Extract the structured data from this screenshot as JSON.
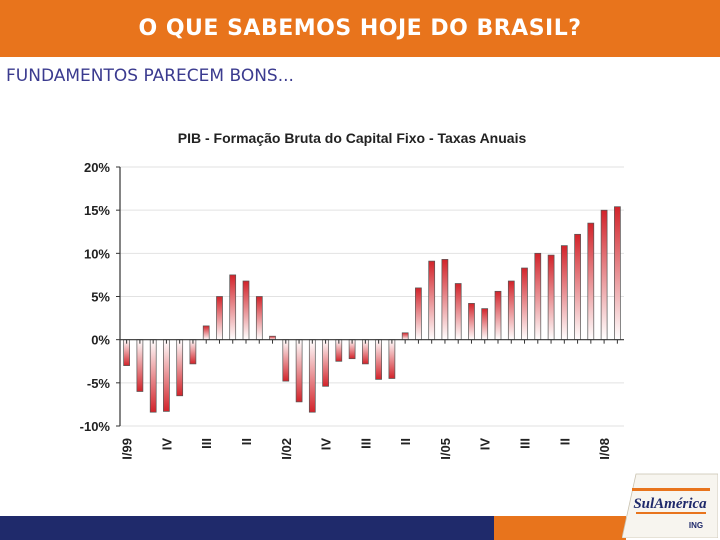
{
  "header": {
    "title": "O QUE SABEMOS HOJE DO BRASIL?"
  },
  "subtitle": "FUNDAMENTOS PARECEM BONS...",
  "colors": {
    "orange": "#e8741c",
    "navy": "#1f2a6b",
    "bar_top": "#d2232a"
  },
  "logo": {
    "brand": "SulAmérica",
    "partner": "ING"
  },
  "chart_data": {
    "type": "bar",
    "title": "PIB - Formação Bruta do Capital Fixo - Taxas Anuais",
    "ylim": [
      -10,
      20
    ],
    "yticks": [
      -10,
      -5,
      0,
      5,
      10,
      15,
      20
    ],
    "ytick_labels": [
      "-10%",
      "-5%",
      "0%",
      "5%",
      "10%",
      "15%",
      "20%"
    ],
    "xlabels": [
      "I/99",
      "IV",
      "III",
      "II",
      "I/02",
      "IV",
      "III",
      "II",
      "I/05",
      "IV",
      "III",
      "II",
      "I/08"
    ],
    "values": [
      -3.0,
      -6.0,
      -8.4,
      -8.3,
      -6.5,
      -2.8,
      1.6,
      5.0,
      7.5,
      6.8,
      5.0,
      0.4,
      -4.8,
      -7.2,
      -8.4,
      -5.4,
      -2.5,
      -2.2,
      -2.8,
      -4.6,
      -4.5,
      0.8,
      6.0,
      9.1,
      9.3,
      6.5,
      4.2,
      3.6,
      5.6,
      6.8,
      8.3,
      10.0,
      9.8,
      10.9,
      12.2,
      13.5,
      15.0,
      15.4
    ]
  }
}
